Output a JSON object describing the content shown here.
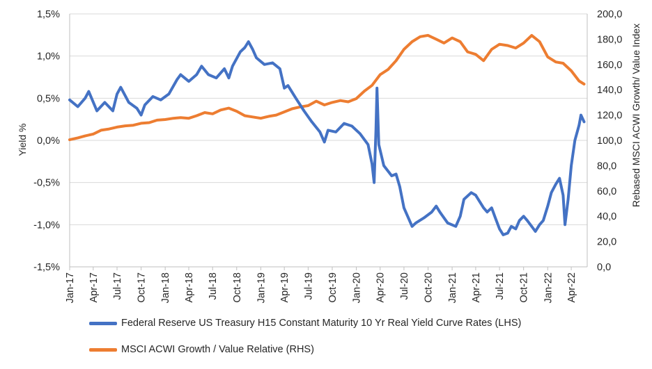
{
  "chart_data": {
    "type": "line",
    "ylabel": "Yield %",
    "y2label": "Rebased MSCI ACWI Growth/ Value Index",
    "ylim": [
      -1.5,
      1.5
    ],
    "y2lim": [
      0,
      200
    ],
    "yticks": [
      "1,5%",
      "1,0%",
      "0,5%",
      "0,0%",
      "-0,5%",
      "-1,0%",
      "-1,5%"
    ],
    "y2ticks": [
      "200,0",
      "180,0",
      "160,0",
      "140,0",
      "120,0",
      "100,0",
      "80,0",
      "60,0",
      "40,0",
      "20,0",
      "0,0"
    ],
    "xlim": [
      "2017-01",
      "2022-06"
    ],
    "xticks": [
      "Jan-17",
      "Apr-17",
      "Jul-17",
      "Oct-17",
      "Jan-18",
      "Apr-18",
      "Jul-18",
      "Oct-18",
      "Jan-19",
      "Apr-19",
      "Jul-19",
      "Oct-19",
      "Jan-20",
      "Apr-20",
      "Jul-20",
      "Oct-20",
      "Jan-21",
      "Apr-21",
      "Jul-21",
      "Oct-21",
      "Jan-22",
      "Apr-22"
    ],
    "grid": true,
    "legend_position": "bottom",
    "series": [
      {
        "name": "Federal Reserve US Treasury H15 Constant Maturity 10 Yr Real Yield Curve Rates (LHS)",
        "axis": "left",
        "color": "#4472C4",
        "points": [
          [
            "2017-01-01",
            0.48
          ],
          [
            "2017-02-01",
            0.4
          ],
          [
            "2017-03-01",
            0.5
          ],
          [
            "2017-03-15",
            0.58
          ],
          [
            "2017-04-15",
            0.35
          ],
          [
            "2017-05-15",
            0.45
          ],
          [
            "2017-06-15",
            0.35
          ],
          [
            "2017-07-01",
            0.55
          ],
          [
            "2017-07-15",
            0.63
          ],
          [
            "2017-08-15",
            0.45
          ],
          [
            "2017-09-15",
            0.38
          ],
          [
            "2017-10-01",
            0.3
          ],
          [
            "2017-10-15",
            0.42
          ],
          [
            "2017-11-15",
            0.52
          ],
          [
            "2017-12-15",
            0.48
          ],
          [
            "2018-01-15",
            0.55
          ],
          [
            "2018-02-15",
            0.72
          ],
          [
            "2018-03-01",
            0.78
          ],
          [
            "2018-04-01",
            0.7
          ],
          [
            "2018-05-01",
            0.78
          ],
          [
            "2018-05-20",
            0.88
          ],
          [
            "2018-06-15",
            0.78
          ],
          [
            "2018-07-15",
            0.74
          ],
          [
            "2018-08-01",
            0.8
          ],
          [
            "2018-08-15",
            0.85
          ],
          [
            "2018-09-01",
            0.74
          ],
          [
            "2018-09-15",
            0.88
          ],
          [
            "2018-10-15",
            1.05
          ],
          [
            "2018-11-01",
            1.1
          ],
          [
            "2018-11-15",
            1.17
          ],
          [
            "2018-12-01",
            1.08
          ],
          [
            "2018-12-15",
            0.98
          ],
          [
            "2019-01-15",
            0.9
          ],
          [
            "2019-02-15",
            0.92
          ],
          [
            "2019-03-15",
            0.85
          ],
          [
            "2019-04-01",
            0.62
          ],
          [
            "2019-04-15",
            0.65
          ],
          [
            "2019-05-15",
            0.5
          ],
          [
            "2019-06-15",
            0.35
          ],
          [
            "2019-07-01",
            0.28
          ],
          [
            "2019-07-15",
            0.22
          ],
          [
            "2019-08-15",
            0.1
          ],
          [
            "2019-09-01",
            -0.02
          ],
          [
            "2019-09-15",
            0.12
          ],
          [
            "2019-10-15",
            0.1
          ],
          [
            "2019-11-15",
            0.2
          ],
          [
            "2019-12-15",
            0.17
          ],
          [
            "2020-01-15",
            0.08
          ],
          [
            "2020-02-15",
            -0.05
          ],
          [
            "2020-03-01",
            -0.28
          ],
          [
            "2020-03-09",
            -0.5
          ],
          [
            "2020-03-16",
            0.12
          ],
          [
            "2020-03-20",
            0.62
          ],
          [
            "2020-03-27",
            -0.05
          ],
          [
            "2020-04-15",
            -0.3
          ],
          [
            "2020-05-15",
            -0.42
          ],
          [
            "2020-06-01",
            -0.4
          ],
          [
            "2020-06-15",
            -0.55
          ],
          [
            "2020-07-01",
            -0.8
          ],
          [
            "2020-07-15",
            -0.9
          ],
          [
            "2020-08-01",
            -1.02
          ],
          [
            "2020-08-15",
            -0.98
          ],
          [
            "2020-09-15",
            -0.92
          ],
          [
            "2020-10-15",
            -0.85
          ],
          [
            "2020-11-01",
            -0.78
          ],
          [
            "2020-11-15",
            -0.85
          ],
          [
            "2020-12-15",
            -0.98
          ],
          [
            "2021-01-15",
            -1.02
          ],
          [
            "2021-02-01",
            -0.9
          ],
          [
            "2021-02-15",
            -0.7
          ],
          [
            "2021-03-15",
            -0.62
          ],
          [
            "2021-04-01",
            -0.65
          ],
          [
            "2021-04-15",
            -0.72
          ],
          [
            "2021-05-01",
            -0.8
          ],
          [
            "2021-05-15",
            -0.85
          ],
          [
            "2021-06-01",
            -0.8
          ],
          [
            "2021-06-15",
            -0.92
          ],
          [
            "2021-07-01",
            -1.05
          ],
          [
            "2021-07-15",
            -1.12
          ],
          [
            "2021-08-01",
            -1.1
          ],
          [
            "2021-08-15",
            -1.02
          ],
          [
            "2021-09-01",
            -1.05
          ],
          [
            "2021-09-15",
            -0.95
          ],
          [
            "2021-10-01",
            -0.9
          ],
          [
            "2021-10-15",
            -0.95
          ],
          [
            "2021-11-01",
            -1.02
          ],
          [
            "2021-11-15",
            -1.08
          ],
          [
            "2021-12-01",
            -1.0
          ],
          [
            "2021-12-15",
            -0.95
          ],
          [
            "2022-01-01",
            -0.78
          ],
          [
            "2022-01-15",
            -0.62
          ],
          [
            "2022-02-01",
            -0.52
          ],
          [
            "2022-02-15",
            -0.45
          ],
          [
            "2022-03-01",
            -0.65
          ],
          [
            "2022-03-08",
            -1.0
          ],
          [
            "2022-03-20",
            -0.7
          ],
          [
            "2022-04-01",
            -0.3
          ],
          [
            "2022-04-15",
            0.0
          ],
          [
            "2022-05-01",
            0.18
          ],
          [
            "2022-05-08",
            0.3
          ],
          [
            "2022-05-20",
            0.22
          ]
        ]
      },
      {
        "name": "MSCI ACWI Growth / Value Relative (RHS)",
        "axis": "right",
        "color": "#ED7D31",
        "points": [
          [
            "2017-01-01",
            100.5
          ],
          [
            "2017-02-01",
            102
          ],
          [
            "2017-03-01",
            103.5
          ],
          [
            "2017-04-01",
            105
          ],
          [
            "2017-05-01",
            108
          ],
          [
            "2017-06-01",
            109
          ],
          [
            "2017-07-01",
            110.5
          ],
          [
            "2017-08-01",
            111.5
          ],
          [
            "2017-09-01",
            112
          ],
          [
            "2017-10-01",
            113.5
          ],
          [
            "2017-11-01",
            114
          ],
          [
            "2017-12-01",
            116
          ],
          [
            "2018-01-01",
            116.5
          ],
          [
            "2018-02-01",
            117.5
          ],
          [
            "2018-03-01",
            118
          ],
          [
            "2018-04-01",
            117.5
          ],
          [
            "2018-05-01",
            119.5
          ],
          [
            "2018-06-01",
            122
          ],
          [
            "2018-07-01",
            121
          ],
          [
            "2018-08-01",
            124
          ],
          [
            "2018-09-01",
            125.5
          ],
          [
            "2018-10-01",
            123
          ],
          [
            "2018-11-01",
            119.5
          ],
          [
            "2018-12-01",
            118.5
          ],
          [
            "2019-01-01",
            117.5
          ],
          [
            "2019-02-01",
            119
          ],
          [
            "2019-03-01",
            120
          ],
          [
            "2019-04-01",
            122.5
          ],
          [
            "2019-05-01",
            125
          ],
          [
            "2019-06-01",
            126.5
          ],
          [
            "2019-07-01",
            127.5
          ],
          [
            "2019-08-01",
            131
          ],
          [
            "2019-09-01",
            128
          ],
          [
            "2019-10-01",
            130
          ],
          [
            "2019-11-01",
            131.5
          ],
          [
            "2019-12-01",
            130.5
          ],
          [
            "2020-01-01",
            133
          ],
          [
            "2020-02-01",
            139
          ],
          [
            "2020-03-01",
            143.5
          ],
          [
            "2020-04-01",
            152
          ],
          [
            "2020-05-01",
            156
          ],
          [
            "2020-06-01",
            163
          ],
          [
            "2020-07-01",
            172
          ],
          [
            "2020-08-01",
            178
          ],
          [
            "2020-09-01",
            182
          ],
          [
            "2020-10-01",
            183
          ],
          [
            "2020-11-01",
            180
          ],
          [
            "2020-12-01",
            177
          ],
          [
            "2021-01-01",
            181
          ],
          [
            "2021-02-01",
            178
          ],
          [
            "2021-03-01",
            170
          ],
          [
            "2021-04-01",
            168
          ],
          [
            "2021-05-01",
            163
          ],
          [
            "2021-06-01",
            172
          ],
          [
            "2021-07-01",
            176
          ],
          [
            "2021-08-01",
            175
          ],
          [
            "2021-09-01",
            173
          ],
          [
            "2021-10-01",
            177
          ],
          [
            "2021-11-01",
            183
          ],
          [
            "2021-12-01",
            178
          ],
          [
            "2022-01-01",
            166
          ],
          [
            "2022-02-01",
            162
          ],
          [
            "2022-03-01",
            161
          ],
          [
            "2022-04-01",
            155
          ],
          [
            "2022-05-01",
            147
          ],
          [
            "2022-05-20",
            144.5
          ]
        ]
      }
    ]
  },
  "legend": [
    {
      "label": "Federal Reserve US Treasury H15 Constant Maturity 10 Yr Real Yield Curve Rates (LHS)",
      "color": "#4472C4"
    },
    {
      "label": "MSCI ACWI Growth / Value Relative (RHS)",
      "color": "#ED7D31"
    }
  ]
}
